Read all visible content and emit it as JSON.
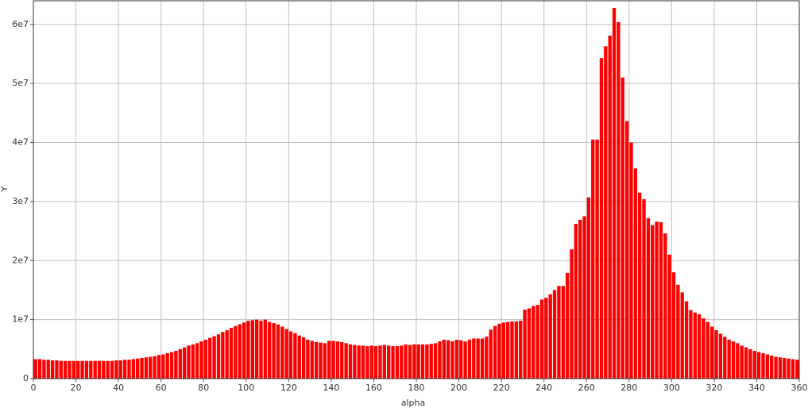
{
  "chart_data": {
    "type": "histogram",
    "xlabel": "alpha",
    "ylabel": "Y",
    "color": "#ff0000",
    "grid": true,
    "xlim": [
      0,
      360
    ],
    "ylim": [
      0,
      64000000
    ],
    "xticks": [
      0,
      20,
      40,
      60,
      80,
      100,
      120,
      140,
      160,
      180,
      200,
      220,
      240,
      260,
      280,
      300,
      320,
      340,
      360
    ],
    "yticks": [
      0,
      {
        "value": 10000000,
        "label": "1e7"
      },
      {
        "value": 20000000,
        "label": "2e7"
      },
      {
        "value": 30000000,
        "label": "3e7"
      },
      {
        "value": 40000000,
        "label": "4e7"
      },
      {
        "value": 50000000,
        "label": "5e7"
      },
      {
        "value": 60000000,
        "label": "6e7"
      }
    ],
    "bins": [
      0,
      2,
      4,
      6,
      8,
      10,
      12,
      14,
      16,
      18,
      20,
      22,
      24,
      26,
      28,
      30,
      32,
      34,
      36,
      38,
      40,
      42,
      44,
      46,
      48,
      50,
      52,
      54,
      56,
      58,
      60,
      62,
      64,
      66,
      68,
      70,
      72,
      74,
      76,
      78,
      80,
      82,
      84,
      86,
      88,
      90,
      92,
      94,
      96,
      98,
      100,
      102,
      104,
      106,
      108,
      110,
      112,
      114,
      116,
      118,
      120,
      122,
      124,
      126,
      128,
      130,
      132,
      134,
      136,
      138,
      140,
      142,
      144,
      146,
      148,
      150,
      152,
      154,
      156,
      158,
      160,
      162,
      164,
      166,
      168,
      170,
      172,
      174,
      176,
      178,
      180,
      182,
      184,
      186,
      188,
      190,
      192,
      194,
      196,
      198,
      200,
      202,
      204,
      206,
      208,
      210,
      212,
      214,
      216,
      218,
      220,
      222,
      224,
      226,
      228,
      230,
      232,
      234,
      236,
      238,
      240,
      242,
      244,
      246,
      248,
      250,
      252,
      254,
      256,
      258,
      260,
      262,
      264,
      266,
      268,
      270,
      272,
      274,
      276,
      278,
      280,
      282,
      284,
      286,
      288,
      290,
      292,
      294,
      296,
      298,
      300,
      302,
      304,
      306,
      308,
      310,
      312,
      314,
      316,
      318,
      320,
      322,
      324,
      326,
      328,
      330,
      332,
      334,
      336,
      338,
      340,
      342,
      344,
      346,
      348,
      350,
      352,
      354,
      356,
      358,
      360
    ],
    "values": [
      3300000.0,
      3300000.0,
      3200000.0,
      3200000.0,
      3100000.0,
      3100000.0,
      3000000.0,
      3000000.0,
      3000000.0,
      3000000.0,
      3000000.0,
      3000000.0,
      3000000.0,
      3000000.0,
      3000000.0,
      3000000.0,
      3000000.0,
      3000000.0,
      3000000.0,
      3100000.0,
      3100000.0,
      3200000.0,
      3200000.0,
      3300000.0,
      3400000.0,
      3500000.0,
      3600000.0,
      3700000.0,
      3800000.0,
      4000000.0,
      4100000.0,
      4300000.0,
      4500000.0,
      4700000.0,
      5000000.0,
      5300000.0,
      5600000.0,
      5800000.0,
      6000000.0,
      6300000.0,
      6600000.0,
      6900000.0,
      7200000.0,
      7500000.0,
      7900000.0,
      8200000.0,
      8600000.0,
      8900000.0,
      9200000.0,
      9500000.0,
      9800000.0,
      9900000.0,
      10000000.0,
      9800000.0,
      10000000.0,
      9600000.0,
      9400000.0,
      9200000.0,
      8800000.0,
      8400000.0,
      8000000.0,
      7700000.0,
      7300000.0,
      7000000.0,
      6600000.0,
      6400000.0,
      6200000.0,
      6100000.0,
      6000000.0,
      6400000.0,
      6400000.0,
      6300000.0,
      6200000.0,
      6000000.0,
      5800000.0,
      5700000.0,
      5600000.0,
      5600000.0,
      5500000.0,
      5600000.0,
      5500000.0,
      5600000.0,
      5700000.0,
      5600000.0,
      5500000.0,
      5500000.0,
      5600000.0,
      5800000.0,
      5700000.0,
      5800000.0,
      5800000.0,
      5800000.0,
      5800000.0,
      5900000.0,
      6000000.0,
      6300000.0,
      6600000.0,
      6500000.0,
      6300000.0,
      6600000.0,
      6500000.0,
      6300000.0,
      6600000.0,
      6800000.0,
      6800000.0,
      6800000.0,
      7100000.0,
      8300000.0,
      8900000.0,
      9300000.0,
      9500000.0,
      9600000.0,
      9700000.0,
      9700000.0,
      9800000.0,
      11700000.0,
      11900000.0,
      12300000.0,
      12500000.0,
      13400000.0,
      13700000.0,
      14300000.0,
      15000000.0,
      15700000.0,
      15700000.0,
      17900000.0,
      21900000.0,
      26200000.0,
      26900000.0,
      27500000.0,
      30700000.0,
      40500000.0,
      40500000.0,
      54300000.0,
      56300000.0,
      58100000.0,
      62800000.0,
      60400000.0,
      51000000.0,
      43600000.0,
      40000000.0,
      35600000.0,
      31500000.0,
      30400000.0,
      27200000.0,
      26000000.0,
      26600000.0,
      26500000.0,
      24600000.0,
      21000000.0,
      18000000.0,
      15900000.0,
      14600000.0,
      13100000.0,
      11600000.0,
      11200000.0,
      10900000.0,
      10200000.0,
      9600000.0,
      8800000.0,
      8200000.0,
      7600000.0,
      7100000.0,
      6600000.0,
      6300000.0,
      6000000.0,
      5600000.0,
      5300000.0,
      5000000.0,
      4700000.0,
      4500000.0,
      4300000.0,
      4100000.0,
      3900000.0,
      3700000.0,
      3600000.0,
      3500000.0,
      3400000.0,
      3300000.0,
      3200000.0
    ]
  }
}
